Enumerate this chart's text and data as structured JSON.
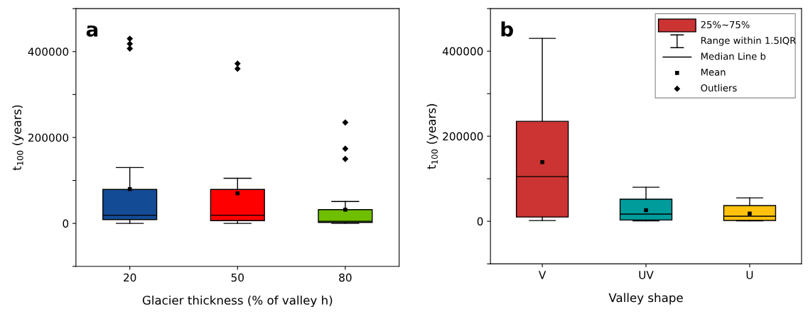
{
  "chart_data": [
    {
      "type": "box",
      "title": "a",
      "xlabel": "Glacier thickness (% of valley h)",
      "ylabel": "t$_{100}$ (years)",
      "categories": [
        "20",
        "50",
        "80"
      ],
      "colors": [
        "#134b95",
        "#fe0000",
        "#6fbe00"
      ],
      "boxes": [
        {
          "low": 0,
          "q1": 9000,
          "median": 19000,
          "q3": 79000,
          "high": 130000,
          "mean": 80000,
          "outliers": [
            430000,
            418000,
            407000
          ]
        },
        {
          "low": 0,
          "q1": 6500,
          "median": 19000,
          "q3": 79000,
          "high": 105000,
          "mean": 70000,
          "outliers": [
            372000,
            360000
          ]
        },
        {
          "low": 0,
          "q1": 2300,
          "median": 5000,
          "q3": 32000,
          "high": 51000,
          "mean": 32000,
          "outliers": [
            235000,
            174000,
            150000
          ]
        }
      ],
      "ylim": [
        -100000,
        500000
      ],
      "yticks": [
        {
          "value": -100000,
          "label": null
        },
        0,
        {
          "value": 100000,
          "label": null
        },
        200000,
        {
          "value": 300000,
          "label": null
        },
        400000,
        {
          "value": 500000,
          "label": null
        }
      ]
    },
    {
      "type": "box",
      "title": "b",
      "xlabel": "Valley shape",
      "ylabel": "t$_{100}$ (years)",
      "categories": [
        "V",
        "UV",
        "U"
      ],
      "colors": [
        "#cc3333",
        "#009c9c",
        "#ffc20e"
      ],
      "boxes": [
        {
          "low": 1800,
          "q1": 10000,
          "median": 105000,
          "q3": 235000,
          "high": 430000,
          "mean": 139000
        },
        {
          "low": 1000,
          "q1": 3000,
          "median": 17000,
          "q3": 52000,
          "high": 80000,
          "mean": 26000
        },
        {
          "low": 1000,
          "q1": 2000,
          "median": 12000,
          "q3": 37000,
          "high": 55000,
          "mean": 18000
        }
      ],
      "ylim": [
        -100000,
        500000
      ],
      "yticks": [
        {
          "value": -100000,
          "label": null
        },
        0,
        {
          "value": 100000,
          "label": null
        },
        200000,
        {
          "value": 300000,
          "label": null
        },
        400000,
        {
          "value": 500000,
          "label": null
        }
      ],
      "annotations": [
        "25%~75%",
        "Range within 1.5IQR",
        "Median Line b",
        "Mean",
        "Outliers"
      ]
    }
  ]
}
